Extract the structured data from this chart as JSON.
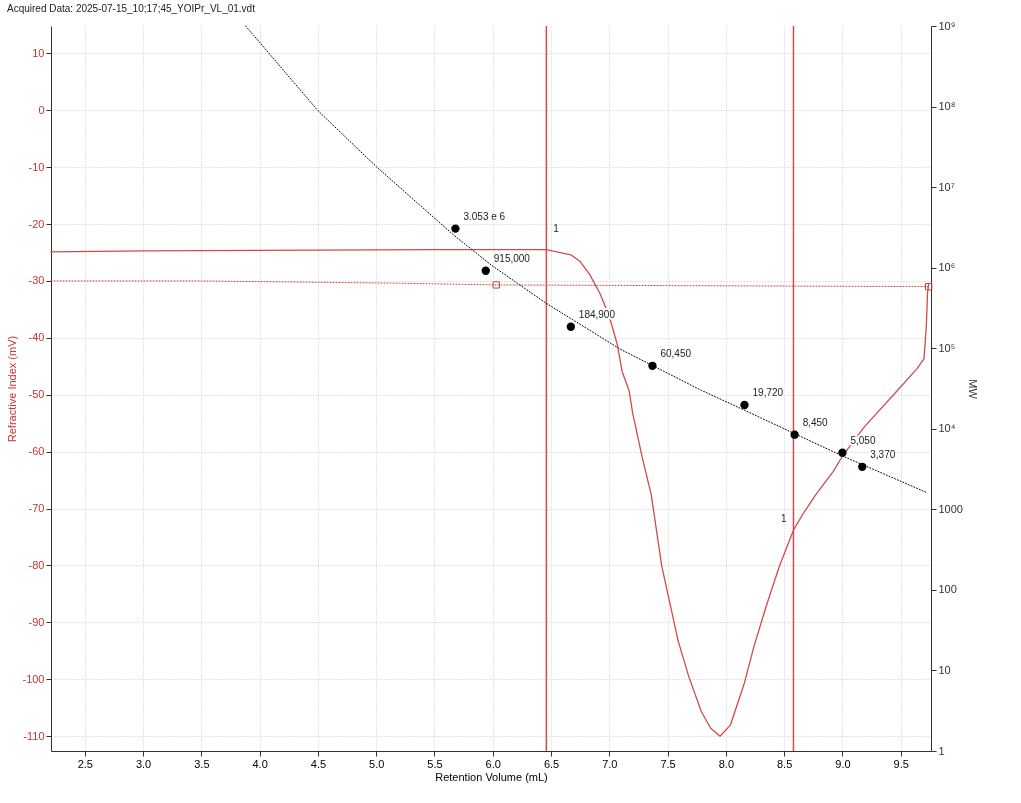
{
  "chart_data": {
    "type": "line",
    "xlabel": "Retention Volume (mL)",
    "ylabel": "Refractive Index (mV)",
    "y2label": "MW",
    "annotations": [
      "Acquired Data: 2025-07-15_10;17;45_YOIPr_VL_01.vdt",
      {
        "text": "1",
        "x": 6.46
      },
      {
        "text": "1",
        "x": 8.58
      }
    ],
    "xlim": [
      2.21,
      9.76
    ],
    "xticks": [
      2.5,
      {
        "value": 3,
        "label": "3.0"
      },
      3.5,
      {
        "value": 4,
        "label": "4.0"
      },
      4.5,
      {
        "value": 5,
        "label": "5.0"
      },
      5.5,
      {
        "value": 6,
        "label": "6.0"
      },
      6.5,
      {
        "value": 7,
        "label": "7.0"
      },
      7.5,
      {
        "value": 8,
        "label": "8.0"
      },
      8.5,
      {
        "value": 9,
        "label": "9.0"
      },
      9.5
    ],
    "ylim": [
      -112.6,
      14.8
    ],
    "yticks": [
      -110,
      -100,
      -90,
      -80,
      -70,
      -60,
      -50,
      -40,
      -30,
      -20,
      -10,
      0,
      10
    ],
    "y2lim": [
      1,
      1000000000
    ],
    "y2ticks": [
      1,
      10,
      100,
      1000,
      {
        "value": 10000,
        "label": "10⁴"
      },
      {
        "value": 100000,
        "label": "10⁵"
      },
      {
        "value": 1000000,
        "label": "10⁶"
      },
      {
        "value": 10000000,
        "label": "10⁷"
      },
      {
        "value": 100000000,
        "label": "10⁸"
      },
      {
        "value": 1000000000,
        "label": "10⁹"
      }
    ],
    "log": "y2",
    "grid": true,
    "ref_lines": [
      {
        "axis": "x",
        "value": 6.46,
        "color": "#d24b4b"
      },
      {
        "axis": "x",
        "value": 8.58,
        "color": "#d24b4b"
      }
    ],
    "series": [
      {
        "color": "#d24b4b",
        "line_style": "solid",
        "marker": "none",
        "x": [
          2.21,
          3.0,
          4.5,
          5.5,
          6.46,
          6.67,
          6.75,
          6.83,
          6.92,
          7.0,
          7.07,
          7.11,
          7.17,
          7.2,
          7.28,
          7.36,
          7.45,
          7.51,
          7.59,
          7.68,
          7.79,
          7.87,
          7.95,
          8.04,
          8.16,
          8.24,
          8.35,
          8.46,
          8.58,
          8.66,
          8.77,
          8.92,
          9.0,
          9.19,
          9.47,
          9.64,
          9.7,
          9.72,
          9.73,
          9.74
        ],
        "values": [
          -24.9,
          -24.7,
          -24.6,
          -24.5,
          -24.5,
          -25.4,
          -26.6,
          -28.8,
          -32.2,
          -36.2,
          -41.3,
          -45.9,
          -49.3,
          -53.2,
          -60.8,
          -67.6,
          -80.1,
          -85.7,
          -93.2,
          -99.4,
          -105.7,
          -108.6,
          -110,
          -108,
          -100.6,
          -94.3,
          -86.9,
          -80.1,
          -73.8,
          -71.0,
          -67.6,
          -63.5,
          -60.8,
          -55.6,
          -49.3,
          -45.4,
          -43.7,
          -37.9,
          -32.2,
          -30.5
        ]
      },
      {
        "color": "#c04545",
        "line_style": "dotted",
        "marker": "none",
        "x": [
          2.21,
          3.5,
          5.2,
          6.03,
          9.74
        ],
        "values": [
          -30.0,
          -30.0,
          -30.4,
          -30.7,
          -31.0
        ]
      },
      {
        "type": "scatter",
        "color": "#c04545",
        "marker": "square",
        "x": [
          6.03,
          9.74
        ],
        "values": [
          -30.7,
          -31.0
        ]
      },
      {
        "axis": "y2",
        "color": "#000000",
        "line_style": "dotted",
        "marker": "none",
        "x": [
          3.88,
          4.5,
          5.0,
          5.67,
          5.99,
          6.46,
          7.09,
          7.79,
          8.16,
          8.59,
          9.0,
          9.73
        ],
        "values": [
          1000000000,
          89000000,
          18000000,
          2500000,
          1070000,
          360000,
          98000,
          30000,
          17000,
          8700,
          4600,
          1600
        ]
      },
      {
        "type": "scatter",
        "axis": "y2",
        "color": "#000000",
        "marker": "circle",
        "x": [
          5.68,
          5.94,
          6.67,
          7.37,
          8.16,
          8.59,
          9.0,
          9.17
        ],
        "values": [
          3053000,
          915000,
          184900,
          60450,
          19720,
          8450,
          5050,
          3370
        ],
        "value_labels": [
          "3.053 e 6",
          "915,000",
          "184,900",
          "60,450",
          "19,720",
          "8,450",
          "5,050",
          "3,370"
        ]
      }
    ]
  }
}
